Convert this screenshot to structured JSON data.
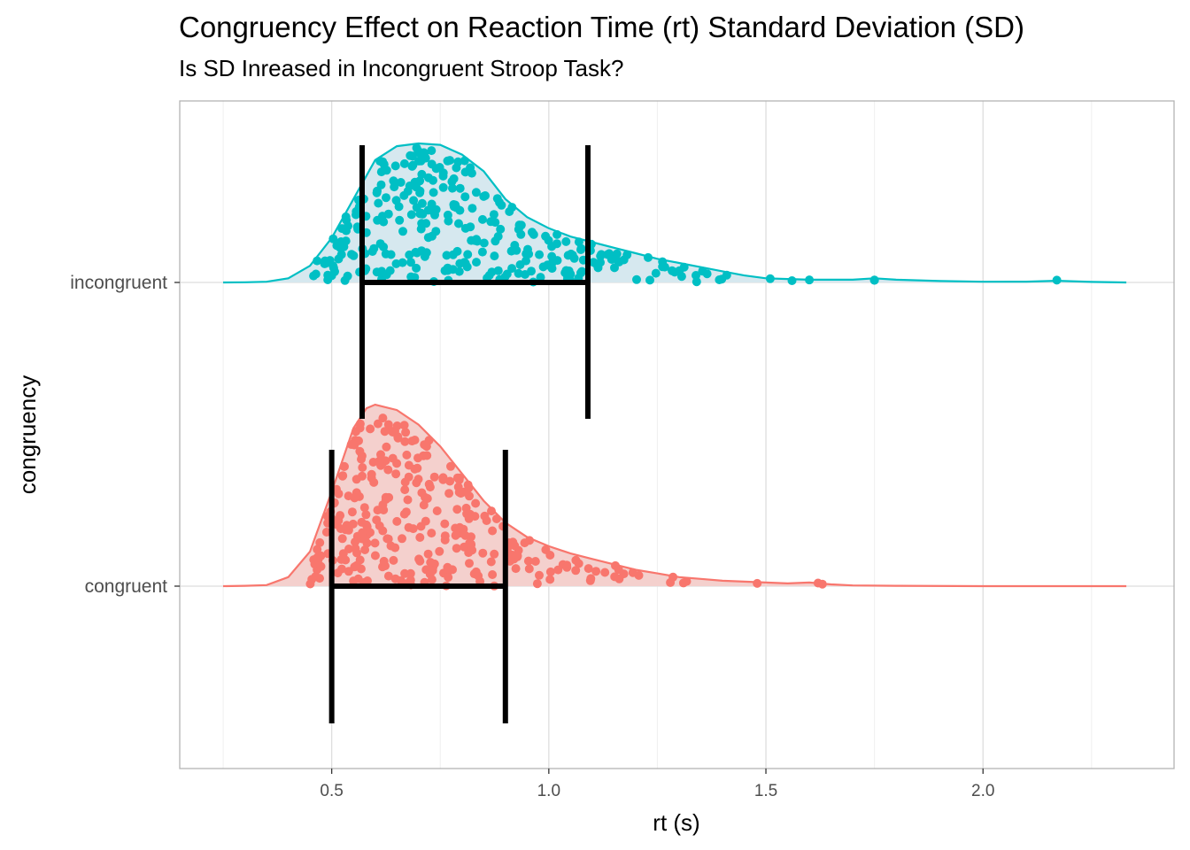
{
  "chart_data": {
    "type": "density_jitter_errorbar",
    "title": "Congruency Effect on Reaction Time (rt) Standard Deviation (SD)",
    "subtitle": "Is SD Inreased in Incongruent Stroop Task?",
    "xlabel": "rt (s)",
    "ylabel": "congruency",
    "xlim": [
      0.15,
      2.44
    ],
    "x_ticks": [
      0.5,
      1.0,
      1.5,
      2.0
    ],
    "x_tick_labels": [
      "0.5",
      "1.0",
      "1.5",
      "2.0"
    ],
    "categories": [
      "congruent",
      "incongruent"
    ],
    "grid": true,
    "legend": "none",
    "series": [
      {
        "category": "congruent",
        "color": "#F8766D",
        "fill": "#F4D0CD",
        "density": [
          [
            0.25,
            0.0
          ],
          [
            0.3,
            0.002
          ],
          [
            0.35,
            0.006
          ],
          [
            0.4,
            0.05
          ],
          [
            0.45,
            0.19
          ],
          [
            0.5,
            0.52
          ],
          [
            0.55,
            0.87
          ],
          [
            0.58,
            0.98
          ],
          [
            0.6,
            1.0
          ],
          [
            0.65,
            0.97
          ],
          [
            0.7,
            0.89
          ],
          [
            0.75,
            0.77
          ],
          [
            0.8,
            0.62
          ],
          [
            0.85,
            0.47
          ],
          [
            0.9,
            0.35
          ],
          [
            0.95,
            0.27
          ],
          [
            1.0,
            0.22
          ],
          [
            1.05,
            0.18
          ],
          [
            1.1,
            0.15
          ],
          [
            1.15,
            0.12
          ],
          [
            1.2,
            0.09
          ],
          [
            1.25,
            0.07
          ],
          [
            1.3,
            0.05
          ],
          [
            1.35,
            0.04
          ],
          [
            1.4,
            0.03
          ],
          [
            1.45,
            0.025
          ],
          [
            1.5,
            0.02
          ],
          [
            1.55,
            0.015
          ],
          [
            1.6,
            0.02
          ],
          [
            1.65,
            0.01
          ],
          [
            1.7,
            0.004
          ],
          [
            1.8,
            0.002
          ],
          [
            2.0,
            0.0
          ],
          [
            2.33,
            0.0
          ]
        ],
        "errorbar": {
          "xmin": 0.5,
          "xmax": 0.9
        },
        "outliers": [
          1.28,
          1.31,
          1.48,
          1.62,
          1.63
        ]
      },
      {
        "category": "incongruent",
        "color": "#00BFC4",
        "fill": "#D6E8EF",
        "density": [
          [
            0.25,
            0.0
          ],
          [
            0.3,
            0.001
          ],
          [
            0.35,
            0.005
          ],
          [
            0.4,
            0.03
          ],
          [
            0.45,
            0.12
          ],
          [
            0.5,
            0.32
          ],
          [
            0.55,
            0.6
          ],
          [
            0.6,
            0.88
          ],
          [
            0.65,
            0.98
          ],
          [
            0.7,
            1.0
          ],
          [
            0.75,
            0.99
          ],
          [
            0.8,
            0.92
          ],
          [
            0.85,
            0.8
          ],
          [
            0.9,
            0.6
          ],
          [
            0.95,
            0.47
          ],
          [
            1.0,
            0.39
          ],
          [
            1.05,
            0.33
          ],
          [
            1.1,
            0.29
          ],
          [
            1.15,
            0.25
          ],
          [
            1.2,
            0.21
          ],
          [
            1.25,
            0.17
          ],
          [
            1.3,
            0.14
          ],
          [
            1.35,
            0.11
          ],
          [
            1.4,
            0.08
          ],
          [
            1.45,
            0.05
          ],
          [
            1.5,
            0.03
          ],
          [
            1.55,
            0.025
          ],
          [
            1.6,
            0.02
          ],
          [
            1.7,
            0.02
          ],
          [
            1.75,
            0.03
          ],
          [
            1.8,
            0.02
          ],
          [
            1.9,
            0.01
          ],
          [
            2.0,
            0.005
          ],
          [
            2.1,
            0.006
          ],
          [
            2.17,
            0.012
          ],
          [
            2.25,
            0.004
          ],
          [
            2.33,
            0.0
          ]
        ],
        "errorbar": {
          "xmin": 0.57,
          "xmax": 1.09
        },
        "outliers": [
          1.51,
          1.56,
          1.6,
          1.75,
          1.75,
          2.17
        ]
      }
    ]
  }
}
